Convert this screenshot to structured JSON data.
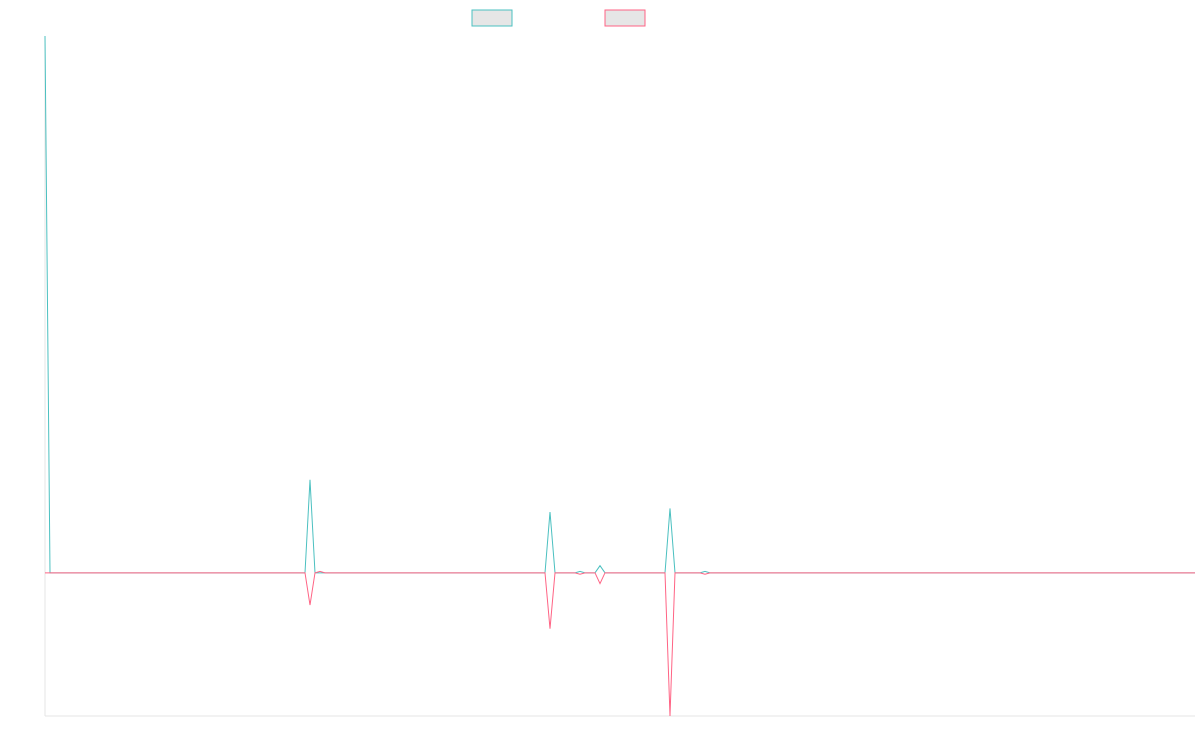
{
  "chart_data": {
    "type": "line",
    "title": "",
    "xlabel": "",
    "ylabel": "",
    "grid": false,
    "legend_position": "top-center",
    "x": [
      0,
      1,
      2,
      3,
      4,
      5,
      6,
      7,
      8,
      9,
      10,
      11,
      12,
      13,
      14,
      15,
      16,
      17,
      18,
      19,
      20,
      21,
      22,
      23,
      24,
      25,
      26,
      27,
      28,
      29,
      30,
      31,
      32,
      33,
      34,
      35,
      36,
      37,
      38,
      39,
      40,
      41,
      42,
      43,
      44,
      45,
      46,
      47,
      48,
      49,
      50,
      51,
      52,
      53,
      54,
      55,
      56,
      57,
      58,
      59,
      60,
      61,
      62,
      63,
      64,
      65,
      66,
      67,
      68,
      69,
      70,
      71,
      72,
      73,
      74,
      75,
      76,
      77,
      78,
      79,
      80,
      81,
      82,
      83,
      84,
      85,
      86,
      87,
      88,
      89,
      90,
      91,
      92,
      93,
      94,
      95,
      96,
      97,
      98,
      99,
      100,
      101,
      102,
      103,
      104,
      105,
      106,
      107,
      108,
      109,
      110,
      111,
      112,
      113,
      114,
      115,
      116,
      117,
      118,
      119,
      120,
      121,
      122,
      123,
      124,
      125,
      126,
      127,
      128,
      129,
      130,
      131,
      132,
      133,
      134,
      135,
      136,
      137,
      138,
      139,
      140,
      141,
      142,
      143,
      144,
      145,
      146,
      147,
      148,
      149,
      150,
      151,
      152,
      153,
      154,
      155,
      156,
      157,
      158,
      159,
      160,
      161,
      162,
      163,
      164,
      165,
      166,
      167,
      168,
      169,
      170,
      171,
      172,
      173,
      174,
      175,
      176,
      177,
      178,
      179,
      180,
      181,
      182,
      183,
      184,
      185,
      186,
      187,
      188,
      189,
      190,
      191,
      192,
      193,
      194,
      195,
      196,
      197,
      198,
      199,
      200,
      201,
      202,
      203,
      204,
      205,
      206,
      207,
      208,
      209,
      210,
      211,
      212,
      213,
      214,
      215,
      216,
      217,
      218,
      219,
      220,
      221,
      222,
      223,
      224,
      225,
      226,
      227,
      228,
      229,
      230
    ],
    "ylim": [
      -2,
      7.5
    ],
    "series": [
      {
        "name": "",
        "color": "#4bc0c0",
        "spikes": [
          [
            0,
            7.5
          ],
          [
            53,
            1.3
          ],
          [
            101,
            0.85
          ],
          [
            107,
            0.02
          ],
          [
            111,
            0.1
          ],
          [
            125,
            0.9
          ],
          [
            132,
            0.02
          ]
        ]
      },
      {
        "name": "",
        "color": "#ff6384",
        "spikes": [
          [
            53,
            -0.45
          ],
          [
            55,
            0.02
          ],
          [
            101,
            -0.78
          ],
          [
            107,
            -0.02
          ],
          [
            111,
            -0.15
          ],
          [
            125,
            -2.0
          ],
          [
            132,
            -0.02
          ]
        ]
      }
    ]
  }
}
